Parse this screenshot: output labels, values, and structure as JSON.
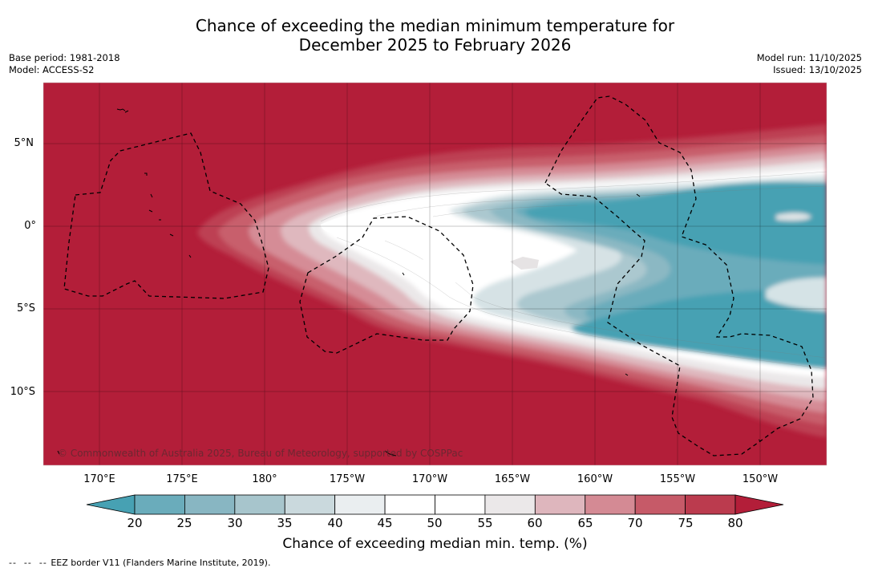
{
  "title": {
    "line1": "Chance of exceeding the median minimum temperature for",
    "line2": "December 2025 to February 2026"
  },
  "meta": {
    "base_period": "Base period: 1981-2018",
    "model": "Model: ACCESS-S2",
    "model_run": "Model run: 11/10/2025",
    "issued": "Issued: 13/10/2025"
  },
  "map": {
    "latitude_labels": [
      "5°N",
      "0°",
      "5°S",
      "10°S"
    ],
    "longitude_labels": [
      "170°E",
      "175°E",
      "180°",
      "175°W",
      "170°W",
      "165°W",
      "160°W",
      "155°W",
      "150°W"
    ],
    "copyright": "© Commonwealth of Australia 2025, Bureau of Meteorology, supported by COSPPac",
    "border_legend": "EEZ border V11 (Flanders Marine Institute, 2019).",
    "colors": {
      "background_high": "#b31e39",
      "core_low": "#47a1b3"
    }
  },
  "colorbar": {
    "title": "Chance of exceeding median min. temp. (%)",
    "ticks": [
      "20",
      "25",
      "30",
      "35",
      "40",
      "45",
      "50",
      "55",
      "60",
      "65",
      "70",
      "75",
      "80"
    ],
    "colors": [
      "#47a1b3",
      "#6aacbb",
      "#88b6c2",
      "#a7c5cc",
      "#cad9dd",
      "#eaeef0",
      "#ffffff",
      "#ffffff",
      "#ebe8e9",
      "#deb6bd",
      "#d48a94",
      "#c65a68",
      "#bb3b4e",
      "#b31e39"
    ]
  }
}
